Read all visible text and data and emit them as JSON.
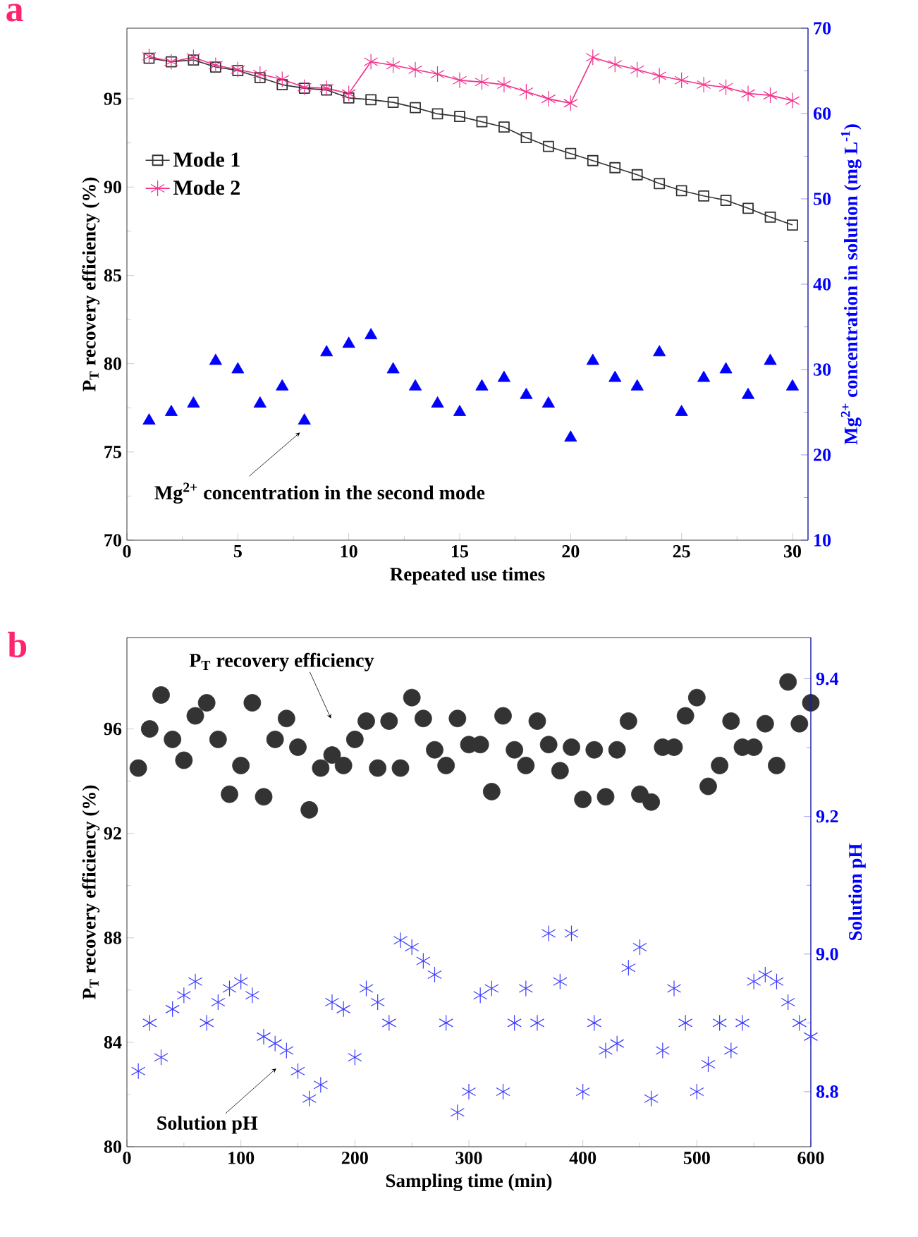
{
  "chart_data": [
    {
      "type": "line",
      "title": "a",
      "xlabel": "Repeated use times",
      "ylabel": "P$_{T}$ recovery efficiency (%)",
      "y2label": "Mg$^{2+}$ concentration in solution (mg L$^{-1}$)",
      "x": [
        1,
        2,
        3,
        4,
        5,
        6,
        7,
        8,
        9,
        10,
        11,
        12,
        13,
        14,
        15,
        16,
        17,
        18,
        19,
        20,
        21,
        22,
        23,
        24,
        25,
        26,
        27,
        28,
        29,
        30
      ],
      "xlim": [
        0,
        30.7
      ],
      "xticks": [
        0,
        5,
        10,
        15,
        20,
        25,
        30
      ],
      "ylim": [
        70,
        99
      ],
      "yticks": [
        70,
        75,
        80,
        85,
        90,
        95
      ],
      "y2lim": [
        10,
        70
      ],
      "y2ticks": [
        10,
        20,
        30,
        40,
        50,
        60,
        70
      ],
      "legend": "top left",
      "series": [
        {
          "name": "Mode 1",
          "color": "#333333",
          "marker": "square",
          "values": [
            97.3,
            97.1,
            97.2,
            96.8,
            96.6,
            96.2,
            95.8,
            95.6,
            95.5,
            95.05,
            94.95,
            94.8,
            94.5,
            94.15,
            94.0,
            93.7,
            93.4,
            92.8,
            92.3,
            91.9,
            91.5,
            91.1,
            90.7,
            90.2,
            89.8,
            89.5,
            89.25,
            88.8,
            88.3,
            87.85
          ]
        },
        {
          "name": "Mode 2",
          "color": "#f0328c",
          "marker": "cross",
          "values": [
            97.4,
            97.1,
            97.35,
            96.9,
            96.65,
            96.4,
            96.1,
            95.65,
            95.6,
            95.3,
            97.1,
            96.9,
            96.65,
            96.4,
            96.05,
            95.95,
            95.8,
            95.4,
            95.0,
            94.75,
            97.35,
            96.95,
            96.65,
            96.3,
            96.05,
            95.8,
            95.65,
            95.3,
            95.2,
            94.9
          ]
        },
        {
          "type": "scatter",
          "axis": "y2",
          "color": "#0000ff",
          "marker": "triangle",
          "values": [
            24,
            25,
            26,
            31,
            30,
            26,
            28,
            24,
            32,
            33,
            34,
            30,
            28,
            26,
            25,
            28,
            29,
            27,
            26,
            22,
            31,
            29,
            28,
            32,
            25,
            29,
            30,
            27,
            31,
            28
          ]
        }
      ],
      "annotations": [
        {
          "text": "Mg$^{2+}$ concentration in the second mode",
          "x": 7.8,
          "y": 76.1
        }
      ]
    },
    {
      "type": "scatter",
      "title": "b",
      "xlabel": "Sampling time (min)",
      "ylabel": "P$_{T}$ recovery efficiency (%)",
      "y2label": "Solution pH",
      "x": [
        10,
        20,
        30,
        40,
        50,
        60,
        70,
        80,
        90,
        100,
        110,
        120,
        130,
        140,
        150,
        160,
        170,
        180,
        190,
        200,
        210,
        220,
        230,
        240,
        250,
        260,
        270,
        280,
        290,
        300,
        310,
        320,
        330,
        340,
        350,
        360,
        370,
        380,
        390,
        400,
        410,
        420,
        430,
        440,
        450,
        460,
        470,
        480,
        490,
        500,
        510,
        520,
        530,
        540,
        550,
        560,
        570,
        580,
        590,
        600
      ],
      "xlim": [
        0,
        600
      ],
      "xticks": [
        0,
        100,
        200,
        300,
        400,
        500,
        600
      ],
      "ylim": [
        80,
        99.5
      ],
      "yticks": [
        80,
        84,
        88,
        92,
        96
      ],
      "y2lim": [
        8.72,
        9.46
      ],
      "y2ticks": [
        8.8,
        {
          "value": 9,
          "label": "9.0"
        },
        9.2,
        9.4
      ],
      "series": [
        {
          "color": "#333333",
          "marker": "circle",
          "values": [
            94.5,
            96.0,
            97.3,
            95.6,
            94.8,
            96.5,
            97.0,
            95.6,
            93.5,
            94.6,
            97.0,
            93.4,
            95.6,
            96.4,
            95.3,
            92.9,
            94.5,
            95.0,
            94.6,
            95.6,
            96.3,
            94.5,
            96.3,
            94.5,
            97.2,
            96.4,
            95.2,
            94.6,
            96.4,
            95.4,
            95.4,
            93.6,
            96.5,
            95.2,
            94.6,
            96.3,
            95.4,
            94.4,
            95.3,
            93.3,
            95.2,
            93.4,
            95.2,
            96.3,
            93.5,
            93.2,
            95.3,
            95.3,
            96.5,
            97.2,
            93.8,
            94.6,
            96.3,
            95.3,
            95.3,
            96.2,
            94.6,
            97.8,
            96.2,
            97.0
          ]
        },
        {
          "axis": "y2",
          "color": "#3c3cff",
          "marker": "cross",
          "values": [
            8.83,
            8.9,
            8.85,
            8.92,
            8.94,
            8.96,
            8.9,
            8.93,
            8.95,
            8.96,
            8.94,
            8.88,
            8.87,
            8.86,
            8.83,
            8.79,
            8.81,
            8.93,
            8.92,
            8.85,
            8.95,
            8.93,
            8.9,
            9.02,
            9.01,
            8.99,
            8.97,
            8.9,
            8.77,
            8.8,
            8.94,
            8.95,
            8.8,
            8.9,
            8.95,
            8.9,
            9.03,
            8.96,
            9.03,
            8.8,
            8.9,
            8.86,
            8.87,
            8.98,
            9.01,
            8.79,
            8.86,
            8.95,
            8.9,
            8.8,
            8.84,
            8.9,
            8.86,
            8.9,
            8.96,
            8.97,
            8.96,
            8.93,
            8.9,
            8.88
          ]
        }
      ],
      "annotations": [
        {
          "text": "P$_{T}$ recovery efficiency",
          "x": 179,
          "y": 96.4
        },
        {
          "text": "Solution pH",
          "x": 131,
          "y": 83.0
        }
      ]
    }
  ]
}
